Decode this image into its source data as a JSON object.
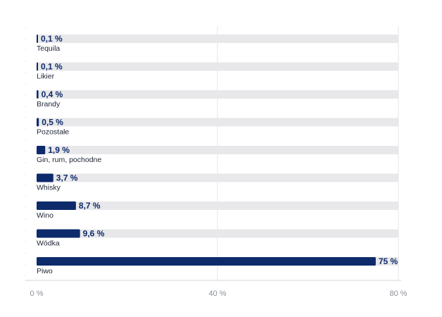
{
  "chart_data": {
    "type": "bar",
    "orientation": "horizontal",
    "categories": [
      "Tequila",
      "Likier",
      "Brandy",
      "Pozostałe",
      "Gin, rum, pochodne",
      "Whisky",
      "Wino",
      "Wódka",
      "Piwo"
    ],
    "values": [
      0.1,
      0.1,
      0.4,
      0.5,
      1.9,
      3.7,
      8.7,
      9.6,
      75
    ],
    "value_labels": [
      "0,1 %",
      "0,1 %",
      "0,4 %",
      "0,5 %",
      "1,9 %",
      "3,7 %",
      "8,7 %",
      "9,6 %",
      "75 %"
    ],
    "xlim": [
      0,
      80
    ],
    "x_ticks": [
      0,
      40,
      80
    ],
    "x_tick_labels": [
      "0 %",
      "40 %",
      "80 %"
    ],
    "grid": true,
    "colors": {
      "bar": "#0d2a6b",
      "track": "#e8e8ea",
      "grid": "#e4e6ea"
    }
  }
}
